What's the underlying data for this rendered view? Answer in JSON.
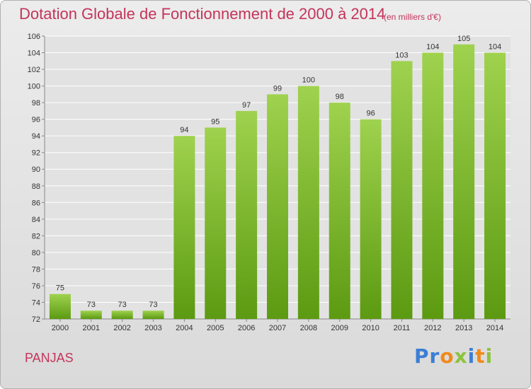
{
  "page": {
    "title": "Dotation Globale de Fonctionnement de 2000 à 2014",
    "unit_note": "(en milliers d'€)",
    "commune": "PANJAS",
    "logo": {
      "text": "Proxiti",
      "letters": [
        {
          "ch": "P",
          "color": "#3b7fd4"
        },
        {
          "ch": "r",
          "color": "#3b7fd4"
        },
        {
          "ch": "o",
          "color": "#f08a1c"
        },
        {
          "ch": "x",
          "color": "#8cc43c"
        },
        {
          "ch": "i",
          "color": "#3b7fd4"
        },
        {
          "ch": "t",
          "color": "#f08a1c"
        },
        {
          "ch": "i",
          "color": "#8cc43c"
        }
      ]
    },
    "colors": {
      "title": "#c4345a",
      "bar_light": "#9fd24e",
      "bar_dark": "#5c9a12",
      "grid": "#ffffff"
    }
  },
  "chart_data": {
    "type": "bar",
    "categories": [
      "2000",
      "2001",
      "2002",
      "2003",
      "2004",
      "2005",
      "2006",
      "2007",
      "2008",
      "2009",
      "2010",
      "2011",
      "2012",
      "2013",
      "2014"
    ],
    "values": [
      75,
      73,
      73,
      73,
      94,
      95,
      97,
      99,
      100,
      98,
      96,
      103,
      104,
      105,
      104
    ],
    "ylim": [
      72,
      106
    ],
    "yticks": [
      72,
      74,
      76,
      78,
      80,
      82,
      84,
      86,
      88,
      90,
      92,
      94,
      96,
      98,
      100,
      102,
      104,
      106
    ],
    "grid": true,
    "data_labels": true
  }
}
